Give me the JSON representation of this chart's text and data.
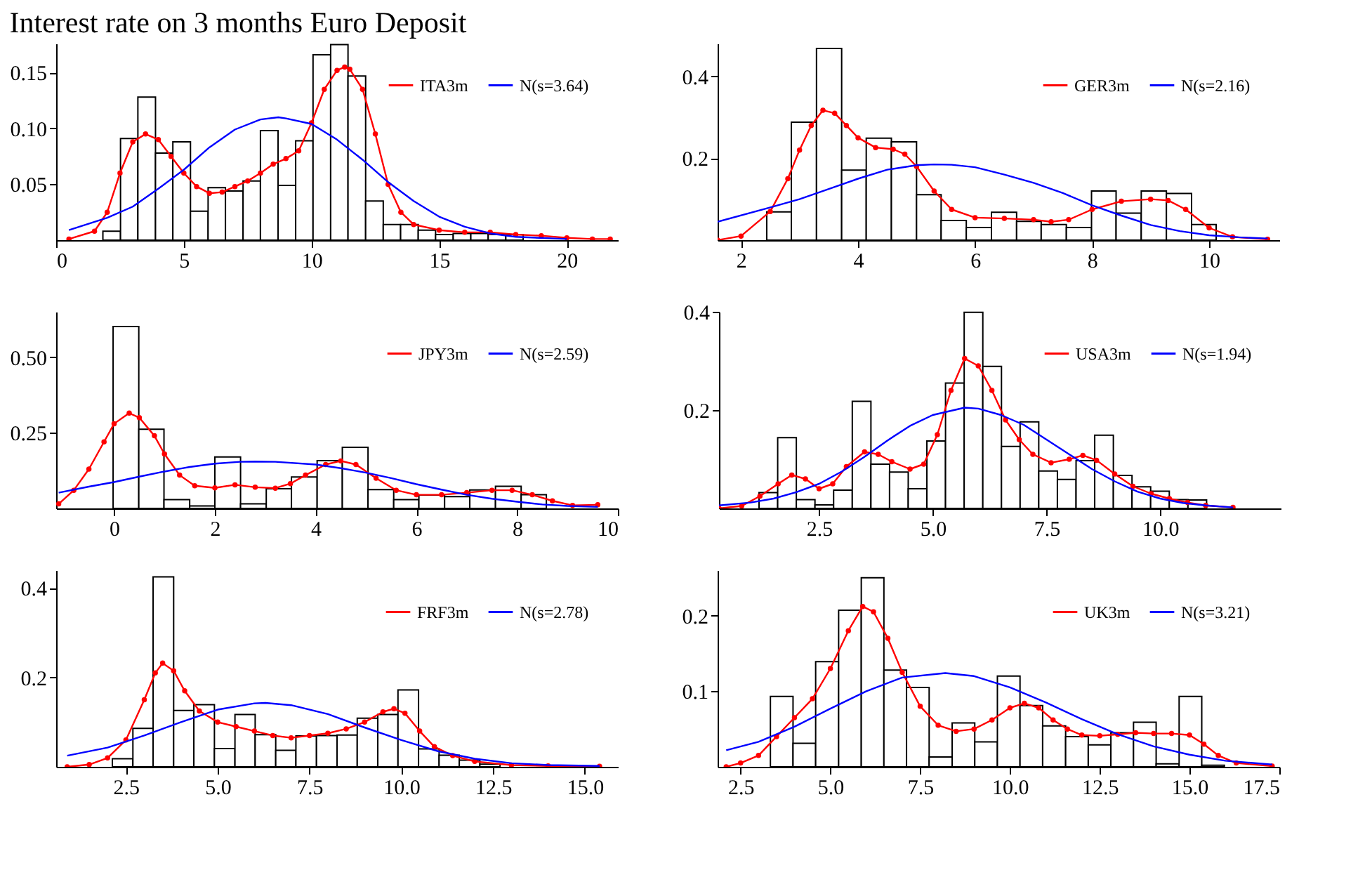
{
  "chart_data": [
    {
      "type": "histogram",
      "title": "Interest rate on 3 months Euro Deposit",
      "color": "#000000",
      "legend": "top right",
      "grid": false,
      "bins": [
        1.83,
        2.52,
        3.2,
        3.89,
        4.57,
        5.26,
        5.95,
        6.63,
        7.32,
        8.0,
        8.69,
        9.38,
        10.06,
        10.75,
        11.43,
        12.12,
        12.81,
        13.49,
        14.18,
        14.86,
        15.55,
        16.24,
        16.92,
        17.61,
        18.29
      ],
      "values": [
        0.008,
        0.091,
        0.128,
        0.078,
        0.088,
        0.026,
        0.047,
        0.044,
        0.053,
        0.098,
        0.049,
        0.089,
        0.166,
        0.175,
        0.147,
        0.035,
        0.014,
        0.014,
        0.009,
        0.005,
        0.006,
        0.006,
        0.005,
        0.005
      ],
      "series": [
        {
          "name": "ITA3m",
          "type": "line",
          "color": "#ff0000",
          "marker": "circle",
          "x": [
            0.5,
            1.5,
            2.0,
            2.5,
            3.0,
            3.5,
            4.0,
            4.5,
            5.0,
            5.5,
            6.0,
            6.5,
            7.0,
            7.5,
            8.0,
            8.5,
            9.0,
            9.5,
            10.0,
            10.5,
            11.0,
            11.3,
            11.5,
            12.0,
            12.5,
            13.0,
            13.5,
            14.0,
            15.0,
            16.0,
            17.0,
            18.0,
            19.0,
            20.0,
            21.0,
            21.7
          ],
          "values": [
            0.001,
            0.008,
            0.025,
            0.06,
            0.088,
            0.095,
            0.09,
            0.075,
            0.06,
            0.048,
            0.042,
            0.043,
            0.048,
            0.053,
            0.06,
            0.068,
            0.073,
            0.08,
            0.105,
            0.135,
            0.152,
            0.155,
            0.153,
            0.135,
            0.095,
            0.05,
            0.025,
            0.014,
            0.009,
            0.007,
            0.007,
            0.005,
            0.004,
            0.002,
            0.001,
            0.001
          ]
        },
        {
          "name": "N(s=3.64)",
          "type": "line",
          "color": "#0000ff",
          "x": [
            0.5,
            2,
            3,
            4,
            5,
            6,
            7,
            8,
            8.7,
            9,
            10,
            11,
            12,
            13,
            14,
            15,
            16,
            17,
            18,
            20
          ],
          "values": [
            0.009,
            0.02,
            0.03,
            0.046,
            0.063,
            0.083,
            0.099,
            0.108,
            0.11,
            0.109,
            0.104,
            0.09,
            0.072,
            0.052,
            0.035,
            0.021,
            0.012,
            0.006,
            0.003,
            0.001
          ]
        }
      ],
      "xlim": [
        0,
        22
      ],
      "ylim": [
        0,
        0.176
      ],
      "xticks": [
        0,
        5,
        10,
        15,
        20
      ],
      "yticks": [
        {
          "value": 0.05,
          "label": "0.05"
        },
        {
          "value": 0.1,
          "label": "0.10"
        },
        0.15
      ]
    },
    {
      "type": "histogram",
      "color": "#000000",
      "legend": "top right",
      "grid": false,
      "bins": [
        2.44,
        2.86,
        3.29,
        3.72,
        4.14,
        4.57,
        5.0,
        5.42,
        5.85,
        6.28,
        6.71,
        7.13,
        7.56,
        7.99,
        8.41,
        8.84,
        9.27,
        9.7,
        10.12
      ],
      "values": [
        0.069,
        0.288,
        0.468,
        0.171,
        0.249,
        0.24,
        0.111,
        0.048,
        0.031,
        0.068,
        0.046,
        0.038,
        0.031,
        0.12,
        0.066,
        0.12,
        0.114,
        0.038
      ],
      "series": [
        {
          "name": "GER3m",
          "type": "line",
          "color": "#ff0000",
          "marker": "circle",
          "x": [
            1.6,
            2.0,
            2.5,
            2.8,
            3.0,
            3.2,
            3.4,
            3.6,
            3.8,
            4.0,
            4.3,
            4.6,
            4.8,
            5.0,
            5.3,
            5.6,
            6.0,
            6.5,
            7.0,
            7.3,
            7.6,
            8.0,
            8.5,
            9.0,
            9.3,
            9.6,
            10.0,
            10.4,
            11.0
          ],
          "values": [
            0.0,
            0.01,
            0.07,
            0.15,
            0.22,
            0.28,
            0.317,
            0.31,
            0.28,
            0.25,
            0.226,
            0.222,
            0.21,
            0.18,
            0.12,
            0.075,
            0.055,
            0.053,
            0.05,
            0.045,
            0.05,
            0.075,
            0.095,
            0.1,
            0.097,
            0.075,
            0.03,
            0.008,
            0.002
          ]
        },
        {
          "name": "N(s=2.16)",
          "type": "line",
          "color": "#0000ff",
          "x": [
            1.6,
            2.5,
            3.0,
            3.5,
            4.0,
            4.5,
            5.0,
            5.3,
            5.6,
            6.0,
            6.5,
            7.0,
            7.5,
            8.0,
            8.5,
            9.0,
            9.5,
            10.0,
            10.5,
            11.0
          ],
          "values": [
            0.045,
            0.08,
            0.1,
            0.125,
            0.15,
            0.172,
            0.183,
            0.185,
            0.184,
            0.178,
            0.16,
            0.14,
            0.115,
            0.085,
            0.06,
            0.037,
            0.022,
            0.012,
            0.007,
            0.004
          ]
        }
      ],
      "xlim": [
        1.6,
        11.2
      ],
      "ylim": [
        0,
        0.48
      ],
      "xticks": [
        2,
        4,
        6,
        8,
        10
      ],
      "yticks": [
        0.2,
        0.4
      ]
    },
    {
      "type": "histogram",
      "color": "#000000",
      "legend": "top right",
      "grid": false,
      "bins": [
        -0.02,
        0.49,
        0.99,
        1.5,
        2.0,
        2.51,
        3.02,
        3.52,
        4.03,
        4.53,
        5.04,
        5.55,
        6.05,
        6.56,
        7.06,
        7.57,
        8.08,
        8.58
      ],
      "values": [
        0.601,
        0.262,
        0.029,
        0.008,
        0.17,
        0.015,
        0.065,
        0.104,
        0.158,
        0.202,
        0.062,
        0.029,
        0.044,
        0.039,
        0.061,
        0.073,
        0.045
      ],
      "series": [
        {
          "name": "JPY3m",
          "type": "line",
          "color": "#ff0000",
          "marker": "circle",
          "x": [
            -1.1,
            -0.8,
            -0.5,
            -0.2,
            0.0,
            0.3,
            0.5,
            0.8,
            1.0,
            1.3,
            1.6,
            2.0,
            2.4,
            2.8,
            3.2,
            3.5,
            3.8,
            4.2,
            4.5,
            4.8,
            5.2,
            5.6,
            6.0,
            6.5,
            7.0,
            7.5,
            7.9,
            8.3,
            8.7,
            9.1,
            9.6
          ],
          "values": [
            0.015,
            0.06,
            0.13,
            0.22,
            0.28,
            0.315,
            0.3,
            0.24,
            0.18,
            0.11,
            0.075,
            0.068,
            0.078,
            0.07,
            0.067,
            0.082,
            0.11,
            0.145,
            0.157,
            0.145,
            0.1,
            0.06,
            0.045,
            0.045,
            0.052,
            0.06,
            0.06,
            0.045,
            0.025,
            0.01,
            0.012
          ]
        },
        {
          "name": "N(s=2.59)",
          "type": "line",
          "color": "#0000ff",
          "x": [
            -1.1,
            -0.5,
            0,
            0.5,
            1,
            1.5,
            2,
            2.5,
            2.8,
            3.2,
            4,
            4.5,
            5,
            5.5,
            6,
            6.5,
            7,
            7.5,
            8,
            8.5,
            9,
            9.6
          ],
          "values": [
            0.052,
            0.072,
            0.087,
            0.105,
            0.122,
            0.137,
            0.148,
            0.154,
            0.155,
            0.154,
            0.145,
            0.133,
            0.118,
            0.1,
            0.08,
            0.062,
            0.045,
            0.032,
            0.022,
            0.013,
            0.008,
            0.005
          ]
        }
      ],
      "xlim": [
        -1.15,
        10.0
      ],
      "ylim": [
        0,
        0.65
      ],
      "xticks": [
        0,
        2,
        4,
        6,
        8,
        10
      ],
      "yticks": [
        0.25,
        {
          "value": 0.5,
          "label": "0.50"
        }
      ]
    },
    {
      "type": "histogram",
      "color": "#000000",
      "legend": "top right",
      "grid": false,
      "bins": [
        1.18,
        1.59,
        2.0,
        2.41,
        2.82,
        3.23,
        3.64,
        4.05,
        4.46,
        4.87,
        5.28,
        5.69,
        6.1,
        6.51,
        6.92,
        7.33,
        7.74,
        8.15,
        8.56,
        8.97,
        9.38,
        9.79,
        10.2,
        10.61,
        11.02
      ],
      "values": [
        0.032,
        0.144,
        0.018,
        0.007,
        0.037,
        0.218,
        0.09,
        0.074,
        0.04,
        0.137,
        0.255,
        0.399,
        0.289,
        0.126,
        0.176,
        0.076,
        0.059,
        0.097,
        0.149,
        0.067,
        0.044,
        0.035,
        0.018,
        0.017
      ],
      "series": [
        {
          "name": "USA3m",
          "type": "line",
          "color": "#ff0000",
          "marker": "circle",
          "x": [
            0.3,
            0.8,
            1.2,
            1.6,
            1.9,
            2.2,
            2.5,
            2.8,
            3.1,
            3.5,
            3.8,
            4.1,
            4.5,
            4.8,
            5.1,
            5.4,
            5.7,
            6.0,
            6.3,
            6.6,
            6.9,
            7.2,
            7.6,
            8.0,
            8.3,
            8.6,
            9.0,
            9.4,
            9.8,
            10.2,
            10.6,
            11.0,
            11.6
          ],
          "values": [
            0.0,
            0.005,
            0.025,
            0.05,
            0.068,
            0.06,
            0.04,
            0.05,
            0.085,
            0.115,
            0.11,
            0.095,
            0.08,
            0.09,
            0.15,
            0.24,
            0.305,
            0.29,
            0.24,
            0.18,
            0.14,
            0.11,
            0.093,
            0.1,
            0.108,
            0.098,
            0.07,
            0.045,
            0.03,
            0.02,
            0.012,
            0.006,
            0.002
          ]
        },
        {
          "name": "N(s=1.94)",
          "type": "line",
          "color": "#0000ff",
          "x": [
            0.3,
            1,
            1.5,
            2,
            2.5,
            3,
            3.5,
            4,
            4.5,
            5,
            5.7,
            6,
            6.5,
            7,
            7.5,
            8,
            8.5,
            9,
            9.5,
            10,
            10.5,
            11,
            11.6
          ],
          "values": [
            0.006,
            0.012,
            0.02,
            0.033,
            0.05,
            0.075,
            0.105,
            0.138,
            0.168,
            0.19,
            0.205,
            0.203,
            0.19,
            0.17,
            0.14,
            0.11,
            0.08,
            0.055,
            0.034,
            0.02,
            0.011,
            0.006,
            0.002
          ]
        }
      ],
      "xlim": [
        0.3,
        12.65
      ],
      "ylim": [
        0,
        0.4
      ],
      "xticks": [
        2.5,
        {
          "value": 5,
          "label": "5.0"
        },
        7.5,
        {
          "value": 10,
          "label": "10.0"
        }
      ],
      "yticks": [
        0.2,
        0.4
      ]
    },
    {
      "type": "histogram",
      "color": "#000000",
      "legend": "top right",
      "grid": false,
      "bins": [
        2.13,
        2.69,
        3.24,
        3.8,
        4.35,
        4.91,
        5.47,
        6.02,
        6.58,
        7.13,
        7.69,
        8.25,
        8.8,
        9.36,
        9.91,
        10.47,
        11.03,
        11.58,
        12.14,
        12.69
      ],
      "values": [
        0.018,
        0.086,
        0.425,
        0.126,
        0.139,
        0.041,
        0.117,
        0.072,
        0.037,
        0.069,
        0.07,
        0.071,
        0.109,
        0.117,
        0.172,
        0.04,
        0.026,
        0.015,
        0.006
      ],
      "series": [
        {
          "name": "FRF3m",
          "type": "line",
          "color": "#ff0000",
          "marker": "circle",
          "x": [
            0.9,
            1.5,
            2.0,
            2.5,
            3.0,
            3.3,
            3.5,
            3.8,
            4.1,
            4.5,
            5.0,
            5.5,
            6.0,
            6.5,
            7.0,
            7.5,
            8.0,
            8.5,
            9.0,
            9.5,
            9.8,
            10.1,
            10.5,
            10.9,
            11.4,
            12.0,
            13.0,
            14.0,
            15.4
          ],
          "values": [
            0.0,
            0.005,
            0.02,
            0.06,
            0.15,
            0.21,
            0.232,
            0.215,
            0.17,
            0.125,
            0.1,
            0.09,
            0.08,
            0.07,
            0.065,
            0.07,
            0.075,
            0.085,
            0.1,
            0.123,
            0.13,
            0.12,
            0.08,
            0.045,
            0.025,
            0.012,
            0.004,
            0.002,
            0.001
          ]
        },
        {
          "name": "N(s=2.78)",
          "type": "line",
          "color": "#0000ff",
          "x": [
            0.9,
            2,
            3,
            4,
            5,
            6,
            6.3,
            7,
            8,
            9,
            10,
            11,
            12,
            13,
            14,
            15.4
          ],
          "values": [
            0.025,
            0.043,
            0.07,
            0.1,
            0.128,
            0.142,
            0.143,
            0.138,
            0.118,
            0.088,
            0.06,
            0.035,
            0.018,
            0.008,
            0.004,
            0.002
          ]
        }
      ],
      "xlim": [
        0.6,
        15.9
      ],
      "ylim": [
        0,
        0.44
      ],
      "xticks": [
        2.5,
        {
          "value": 5,
          "label": "5.0"
        },
        7.5,
        {
          "value": 10,
          "label": "10.0"
        },
        12.5,
        {
          "value": 15,
          "label": "15.0"
        }
      ],
      "yticks": [
        0.2,
        0.4
      ]
    },
    {
      "type": "histogram",
      "color": "#000000",
      "legend": "top right",
      "grid": false,
      "bins": [
        3.33,
        3.96,
        4.59,
        5.23,
        5.86,
        6.49,
        7.12,
        7.75,
        8.39,
        9.02,
        9.65,
        10.28,
        10.91,
        11.55,
        12.18,
        12.81,
        13.44,
        14.07,
        14.71,
        15.34,
        15.97
      ],
      "values": [
        0.093,
        0.031,
        0.139,
        0.207,
        0.25,
        0.128,
        0.105,
        0.013,
        0.058,
        0.033,
        0.12,
        0.081,
        0.054,
        0.04,
        0.029,
        0.045,
        0.059,
        0.004,
        0.093,
        0.002
      ],
      "series": [
        {
          "name": "UK3m",
          "type": "line",
          "color": "#ff0000",
          "marker": "circle",
          "x": [
            2.1,
            2.5,
            3.0,
            3.5,
            4.0,
            4.5,
            5.0,
            5.5,
            5.9,
            6.2,
            6.6,
            7.0,
            7.5,
            8.0,
            8.5,
            9.0,
            9.5,
            10.0,
            10.4,
            10.8,
            11.2,
            11.6,
            12.0,
            12.5,
            13.0,
            13.5,
            14.0,
            14.5,
            15.0,
            15.4,
            15.8,
            16.3,
            17.3
          ],
          "values": [
            0.0,
            0.005,
            0.015,
            0.04,
            0.065,
            0.09,
            0.13,
            0.18,
            0.212,
            0.205,
            0.17,
            0.125,
            0.08,
            0.055,
            0.047,
            0.05,
            0.062,
            0.078,
            0.084,
            0.078,
            0.062,
            0.05,
            0.042,
            0.041,
            0.043,
            0.045,
            0.044,
            0.044,
            0.042,
            0.03,
            0.015,
            0.005,
            0.001
          ]
        },
        {
          "name": "N(s=3.21)",
          "type": "line",
          "color": "#0000ff",
          "x": [
            2.1,
            3,
            4,
            5,
            6,
            7,
            8.2,
            9,
            10,
            11,
            12,
            13,
            14,
            15,
            16,
            17.3
          ],
          "values": [
            0.022,
            0.033,
            0.053,
            0.077,
            0.1,
            0.118,
            0.124,
            0.12,
            0.105,
            0.085,
            0.063,
            0.043,
            0.027,
            0.016,
            0.008,
            0.003
          ]
        }
      ],
      "xlim": [
        1.86,
        17.5
      ],
      "ylim": [
        0,
        0.26
      ],
      "xticks": [
        2.5,
        {
          "value": 5,
          "label": "5.0"
        },
        7.5,
        {
          "value": 10,
          "label": "10.0"
        },
        12.5,
        {
          "value": 15,
          "label": "15.0"
        },
        17.5
      ],
      "yticks": [
        0.1,
        0.2
      ]
    }
  ]
}
